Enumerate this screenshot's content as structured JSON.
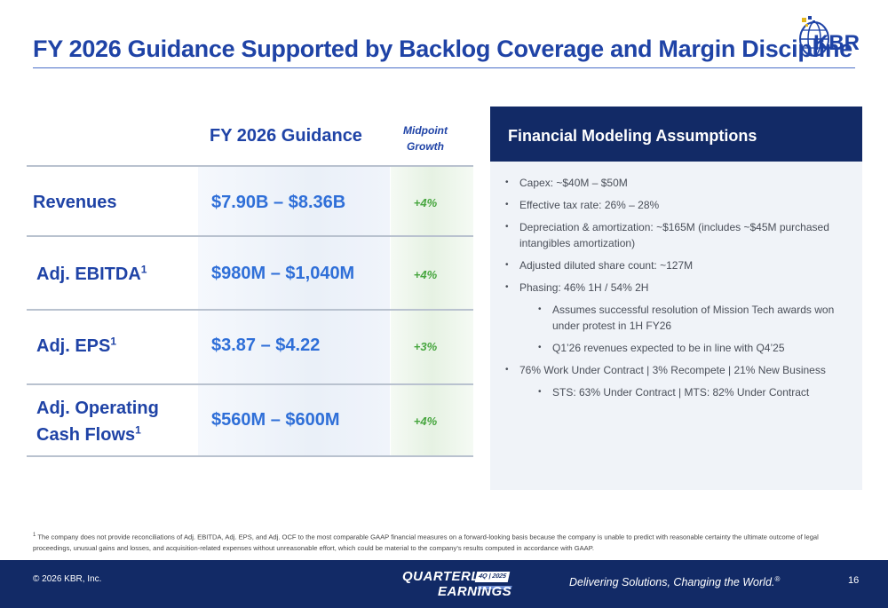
{
  "title": "FY 2026 Guidance Supported by Backlog Coverage and Margin Discipline",
  "logo": {
    "text": "KBR",
    "icon": "kbr-globe-logo"
  },
  "guidance": {
    "col_guidance": "FY 2026 Guidance",
    "col_growth_line1": "Midpoint",
    "col_growth_line2": "Growth",
    "rows": [
      {
        "label": "Revenues",
        "sup": "",
        "value": "$7.90B – $8.36B",
        "growth": "+4%"
      },
      {
        "label": "Adj. EBITDA",
        "sup": "1",
        "value": "$980M – $1,040M",
        "growth": "+4%"
      },
      {
        "label": "Adj. EPS",
        "sup": "1",
        "value": "$3.87 – $4.22",
        "growth": "+3%"
      },
      {
        "label_line1": "Adj. Operating",
        "label_line2": "Cash Flows",
        "sup": "1",
        "value": "$560M – $600M",
        "growth": "+4%"
      }
    ]
  },
  "assumptions": {
    "title": "Financial Modeling Assumptions",
    "items": [
      "Capex: ~$40M – $50M",
      "Effective tax rate: 26% – 28%",
      "Depreciation & amortization: ~$165M (includes ~$45M purchased intangibles amortization)",
      "Adjusted diluted share count: ~127M",
      "Phasing: 46% 1H / 54% 2H",
      "Assumes successful resolution of Mission Tech awards won under protest in 1H FY26",
      "Q1’26 revenues expected to be in line with Q4’25",
      "76% Work Under Contract | 3% Recompete | 21% New Business",
      "STS: 63% Under Contract | MTS: 82% Under Contract"
    ]
  },
  "footnote": {
    "marker": "1",
    "text": "The company does not provide reconciliations of Adj. EBITDA, Adj. EPS, and Adj. OCF to the most comparable GAAP financial measures on a forward-looking basis because the company is unable to predict with reasonable certainty the ultimate outcome of legal proceedings, unusual gains and losses, and acquisition-related expenses without unreasonable effort, which could be material to the company’s results computed in accordance with GAAP."
  },
  "footer": {
    "copyright": "© 2026 KBR, Inc.",
    "brand_line1": "QUARTERLY",
    "brand_line2": "EARNINGS",
    "brand_badge": "4Q | 2025",
    "tagline": "Delivering Solutions, Changing the World.",
    "tagline_mark": "®",
    "page": "16"
  },
  "colors": {
    "navy": "#122a66",
    "title_blue": "#1f43a6",
    "value_blue": "#2f6fd8",
    "growth_green": "#47a63f",
    "panel_bg": "#f0f3f8"
  }
}
